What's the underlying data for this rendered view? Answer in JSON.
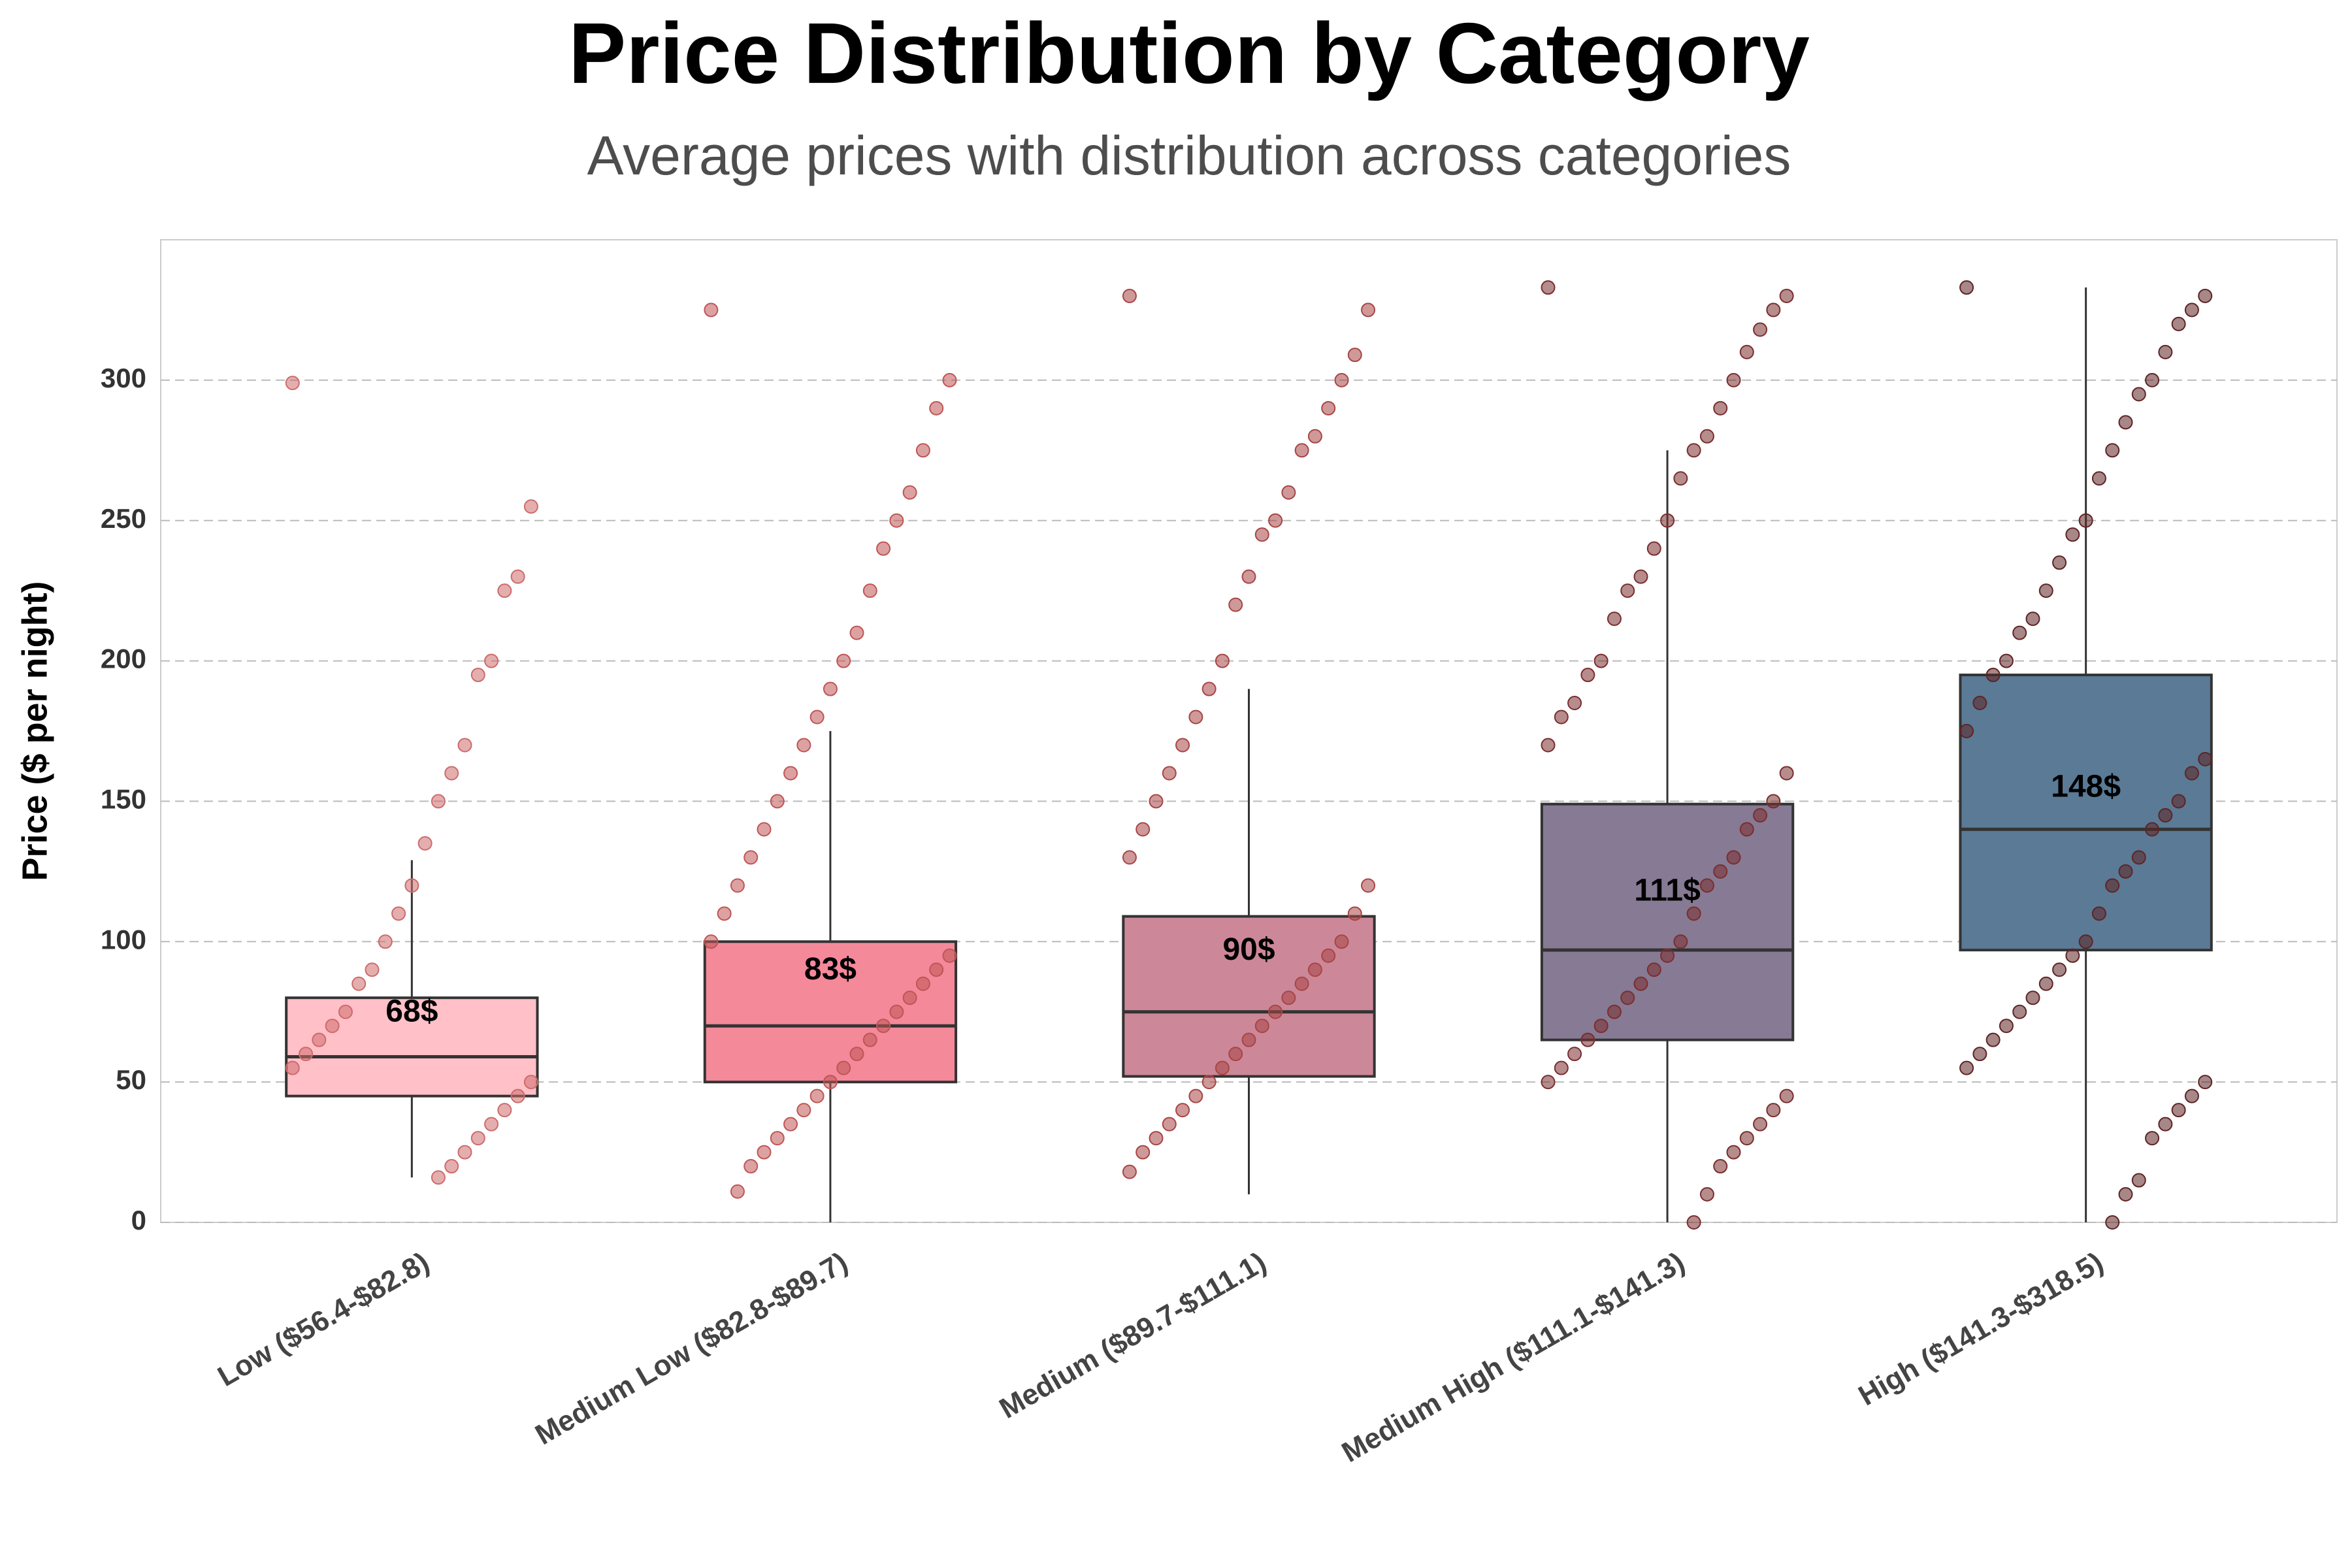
{
  "chart_data": {
    "type": "box",
    "title": "Price Distribution by Category",
    "subtitle": "Average prices with distribution across categories",
    "y_label": "Price ($ per night)",
    "categories": [
      "Low ($56.4-$82.8)",
      "Medium Low ($82.8-$89.7)",
      "Medium ($89.7-$111.1)",
      "Medium High ($111.1-$141.3)",
      "High ($141.3-$318.5)"
    ],
    "ylim": [
      0,
      350
    ],
    "yticks": [
      0,
      50,
      100,
      150,
      200,
      250,
      300
    ],
    "grid": true,
    "boxes": [
      {
        "whislo": 16,
        "q1": 45,
        "med": 59,
        "q3": 80,
        "whishi": 129,
        "mean": 68,
        "mean_label": "68$",
        "color": "#ffc0c8",
        "point_color": "#cd6b6b",
        "points": [
          299,
          255,
          230,
          225,
          200,
          195,
          170,
          160,
          150,
          135,
          120,
          110,
          100,
          90,
          85,
          75,
          70,
          65,
          60,
          55,
          50,
          45,
          40,
          35,
          30,
          25,
          20,
          16
        ]
      },
      {
        "whislo": 0,
        "q1": 50,
        "med": 70,
        "q3": 100,
        "whishi": 175,
        "mean": 83,
        "mean_label": "83$",
        "color": "#f4899a",
        "point_color": "#c05555",
        "points": [
          325,
          300,
          290,
          275,
          260,
          250,
          240,
          225,
          210,
          200,
          190,
          180,
          170,
          160,
          150,
          140,
          130,
          120,
          110,
          100,
          95,
          90,
          85,
          80,
          75,
          70,
          65,
          60,
          55,
          50,
          45,
          40,
          35,
          30,
          25,
          20,
          11
        ]
      },
      {
        "whislo": 10,
        "q1": 52,
        "med": 75,
        "q3": 109,
        "whishi": 190,
        "mean": 90,
        "mean_label": "90$",
        "color": "#cc8899",
        "point_color": "#a84545",
        "points": [
          330,
          325,
          309,
          300,
          290,
          280,
          275,
          260,
          250,
          245,
          230,
          220,
          200,
          190,
          180,
          170,
          160,
          150,
          140,
          130,
          120,
          110,
          100,
          95,
          90,
          85,
          80,
          75,
          70,
          65,
          60,
          55,
          50,
          45,
          40,
          35,
          30,
          25,
          18
        ]
      },
      {
        "whislo": 0,
        "q1": 65,
        "med": 97,
        "q3": 149,
        "whishi": 275,
        "mean": 111,
        "mean_label": "111$",
        "color": "#877a94",
        "point_color": "#7a2e2e",
        "points": [
          333,
          330,
          325,
          318,
          310,
          300,
          290,
          280,
          275,
          265,
          250,
          240,
          230,
          225,
          215,
          200,
          195,
          185,
          180,
          170,
          160,
          150,
          145,
          140,
          130,
          125,
          120,
          110,
          100,
          95,
          90,
          85,
          80,
          75,
          70,
          65,
          60,
          55,
          50,
          45,
          40,
          35,
          30,
          25,
          20,
          10,
          0
        ]
      },
      {
        "whislo": 0,
        "q1": 97,
        "med": 140,
        "q3": 195,
        "whishi": 333,
        "mean": 148,
        "mean_label": "148$",
        "color": "#5a7a96",
        "point_color": "#5e2424",
        "points": [
          333,
          330,
          325,
          320,
          310,
          300,
          295,
          285,
          275,
          265,
          250,
          245,
          235,
          225,
          215,
          210,
          200,
          195,
          185,
          175,
          165,
          160,
          150,
          145,
          140,
          130,
          125,
          120,
          110,
          100,
          95,
          90,
          85,
          80,
          75,
          70,
          65,
          60,
          55,
          50,
          45,
          40,
          35,
          30,
          15,
          10,
          0
        ]
      }
    ]
  }
}
